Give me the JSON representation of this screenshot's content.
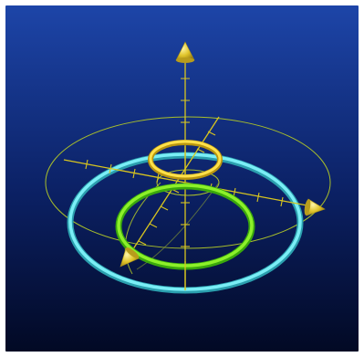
{
  "scene": {
    "background_top": "#1d45a8",
    "background_bottom": "#020924",
    "axis_color": "#d8c51f",
    "wire_color": "#a9bf2a",
    "rings": [
      {
        "name": "cyan-ring",
        "color": "#63e4ee"
      },
      {
        "name": "green-ring",
        "color": "#73e616"
      },
      {
        "name": "yellow-ring",
        "color": "#f2d22a"
      }
    ]
  }
}
